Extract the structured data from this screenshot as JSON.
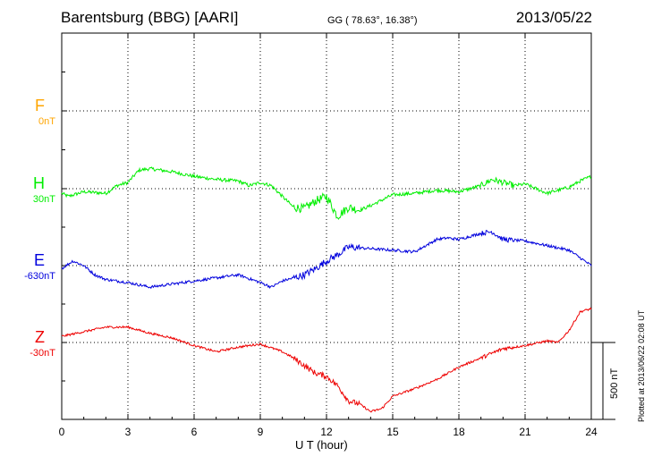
{
  "header": {
    "station": "Barentsburg (BBG)  [AARI]",
    "coords": "GG ( 78.63°,  16.38°)",
    "date": "2013/05/22"
  },
  "footer": {
    "plotted": "Plotted at 2013/06/22 02:08 UT"
  },
  "chart_data": {
    "type": "line",
    "xlabel": "U T (hour)",
    "xlim": [
      0,
      24
    ],
    "x_ticks": [
      "0",
      "3",
      "6",
      "9",
      "12",
      "15",
      "18",
      "21",
      "24"
    ],
    "grid": true,
    "scale_bar": {
      "label": "500 nT",
      "value": 500
    },
    "series": [
      {
        "name": "F",
        "baseline_label": "0nT",
        "color": "#ffa500",
        "values": []
      },
      {
        "name": "H",
        "baseline_label": "30nT",
        "color": "#00ee00",
        "x": [
          0,
          0.3,
          1,
          2,
          2.5,
          3,
          3.5,
          4,
          5,
          6,
          7,
          8,
          8.5,
          9,
          9.5,
          10,
          10.5,
          11,
          11.5,
          12,
          12.5,
          13,
          13.5,
          14,
          15,
          16,
          17,
          18,
          19,
          19.5,
          20,
          20.5,
          21,
          22,
          23,
          23.5,
          24
        ],
        "values": [
          -30,
          -50,
          -20,
          -30,
          20,
          40,
          120,
          130,
          110,
          80,
          60,
          50,
          20,
          40,
          20,
          -50,
          -120,
          -130,
          -80,
          -50,
          -180,
          -120,
          -140,
          -110,
          -40,
          -30,
          -10,
          -20,
          20,
          60,
          40,
          20,
          30,
          -30,
          10,
          50,
          80
        ]
      },
      {
        "name": "E",
        "baseline_label": "-630nT",
        "color": "#0000dd",
        "x": [
          0,
          0.5,
          1,
          1.5,
          2,
          3,
          4,
          5,
          6,
          7,
          8,
          9,
          9.5,
          10,
          11,
          11.5,
          12,
          12.5,
          13,
          14,
          15,
          16,
          17,
          17.5,
          18,
          19,
          19.5,
          20,
          21,
          22,
          23,
          24
        ],
        "values": [
          -20,
          30,
          0,
          -60,
          -90,
          -110,
          -140,
          -120,
          -100,
          -80,
          -60,
          -110,
          -140,
          -100,
          -60,
          -20,
          30,
          70,
          120,
          110,
          100,
          90,
          170,
          180,
          170,
          210,
          220,
          170,
          160,
          130,
          100,
          0
        ]
      },
      {
        "name": "Z",
        "baseline_label": "-30nT",
        "color": "#ee0000",
        "x": [
          0,
          1,
          2,
          3,
          4,
          5,
          6,
          7,
          8,
          9,
          10,
          10.5,
          11,
          11.5,
          12,
          12.5,
          13,
          13.5,
          14,
          14.5,
          15,
          16,
          17,
          18,
          19,
          20,
          21,
          22,
          22.5,
          23,
          23.5,
          24
        ],
        "values": [
          40,
          70,
          100,
          100,
          60,
          30,
          -20,
          -60,
          -30,
          -10,
          -60,
          -100,
          -150,
          -200,
          -220,
          -280,
          -380,
          -400,
          -450,
          -430,
          -350,
          -300,
          -240,
          -160,
          -100,
          -40,
          -20,
          10,
          0,
          80,
          200,
          220
        ]
      }
    ]
  }
}
